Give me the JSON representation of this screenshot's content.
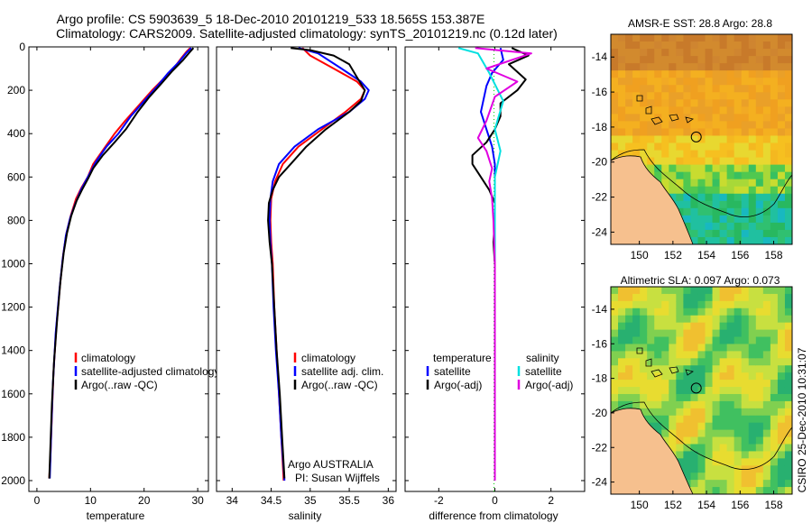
{
  "figure": {
    "title_line1": "Argo profile: CS 5903639_5 18-Dec-2010 20101219_533 18.565S 153.387E",
    "title_line2": "Climatology: CARS2009. Satellite-adjusted climatology: synTS_20101219.nc (0.12d later)",
    "footer_credit": "CSIRO 25-Dec-2010 10:31:07",
    "colors": {
      "climatology": "#ff0000",
      "satellite": "#0000ff",
      "argo": "#000000",
      "sat_salinity": "#00e0e0",
      "argo_salinity": "#e000e0"
    }
  },
  "chart_data": [
    {
      "type": "line",
      "name": "temperature",
      "xlabel": "temperature",
      "xlim": [
        -1.5,
        32
      ],
      "ylim": [
        2050,
        0
      ],
      "xticks": [
        0,
        10,
        20,
        30
      ],
      "yticks": [
        0,
        200,
        400,
        600,
        800,
        1000,
        1200,
        1400,
        1600,
        1800,
        2000
      ],
      "legend": [
        "climatology",
        "satellite-adjusted climatology",
        "Argo(..raw -QC)"
      ],
      "series": [
        {
          "name": "climatology",
          "color": "#ff0000",
          "points": [
            [
              28.6,
              5
            ],
            [
              28,
              20
            ],
            [
              27,
              50
            ],
            [
              25.5,
              100
            ],
            [
              23.5,
              150
            ],
            [
              21.5,
              200
            ],
            [
              19,
              270
            ],
            [
              16.5,
              340
            ],
            [
              14.5,
              400
            ],
            [
              12.5,
              470
            ],
            [
              10.5,
              540
            ],
            [
              9.5,
              600
            ],
            [
              8.3,
              650
            ],
            [
              7.3,
              700
            ],
            [
              6.3,
              780
            ],
            [
              5.5,
              860
            ],
            [
              4.9,
              960
            ],
            [
              4.3,
              1100
            ],
            [
              3.6,
              1300
            ],
            [
              3.1,
              1500
            ],
            [
              2.8,
              1700
            ],
            [
              2.5,
              1900
            ],
            [
              2.3,
              1990
            ]
          ]
        },
        {
          "name": "satellite",
          "color": "#0000ff",
          "points": [
            [
              28.8,
              5
            ],
            [
              27.8,
              30
            ],
            [
              26.5,
              70
            ],
            [
              24.5,
              120
            ],
            [
              22.5,
              180
            ],
            [
              20,
              250
            ],
            [
              17.5,
              320
            ],
            [
              15.2,
              400
            ],
            [
              13,
              460
            ],
            [
              11,
              530
            ],
            [
              9.5,
              600
            ],
            [
              8.2,
              660
            ],
            [
              7.2,
              720
            ],
            [
              6.2,
              790
            ],
            [
              5.4,
              870
            ],
            [
              4.8,
              980
            ],
            [
              4.2,
              1120
            ],
            [
              3.5,
              1320
            ],
            [
              3.0,
              1550
            ],
            [
              2.7,
              1760
            ],
            [
              2.4,
              1990
            ]
          ]
        },
        {
          "name": "argo",
          "color": "#000000",
          "points": [
            [
              29.2,
              5
            ],
            [
              28.5,
              25
            ],
            [
              27.3,
              60
            ],
            [
              25.3,
              110
            ],
            [
              23.2,
              170
            ],
            [
              21,
              230
            ],
            [
              18.8,
              300
            ],
            [
              16.6,
              380
            ],
            [
              14.5,
              440
            ],
            [
              12.3,
              500
            ],
            [
              10.5,
              560
            ],
            [
              9.5,
              610
            ],
            [
              8.4,
              660
            ],
            [
              7.4,
              710
            ],
            [
              6.4,
              780
            ],
            [
              5.6,
              860
            ],
            [
              5.0,
              950
            ],
            [
              4.4,
              1080
            ],
            [
              3.8,
              1250
            ],
            [
              3.2,
              1450
            ],
            [
              2.8,
              1650
            ],
            [
              2.5,
              1850
            ],
            [
              2.3,
              1990
            ]
          ]
        }
      ]
    },
    {
      "type": "line",
      "name": "salinity",
      "xlabel": "salinity",
      "xlim": [
        33.8,
        36.1
      ],
      "ylim": [
        2050,
        0
      ],
      "xticks": [
        34,
        34.5,
        35,
        35.5,
        36
      ],
      "legend": [
        "climatology",
        "satellite adj. clim.",
        "Argo(..raw -QC)"
      ],
      "series": [
        {
          "name": "climatology",
          "color": "#ff0000",
          "points": [
            [
              34.9,
              5
            ],
            [
              35.0,
              40
            ],
            [
              35.3,
              100
            ],
            [
              35.6,
              160
            ],
            [
              35.7,
              200
            ],
            [
              35.65,
              240
            ],
            [
              35.45,
              300
            ],
            [
              35.15,
              380
            ],
            [
              34.85,
              460
            ],
            [
              34.65,
              540
            ],
            [
              34.55,
              620
            ],
            [
              34.5,
              700
            ],
            [
              34.49,
              800
            ],
            [
              34.5,
              900
            ],
            [
              34.52,
              1000
            ],
            [
              34.54,
              1200
            ],
            [
              34.57,
              1400
            ],
            [
              34.6,
              1600
            ],
            [
              34.63,
              1800
            ],
            [
              34.66,
              2000
            ]
          ]
        },
        {
          "name": "satellite",
          "color": "#0000ff",
          "points": [
            [
              34.85,
              5
            ],
            [
              35.1,
              30
            ],
            [
              35.4,
              100
            ],
            [
              35.65,
              160
            ],
            [
              35.75,
              200
            ],
            [
              35.7,
              240
            ],
            [
              35.5,
              300
            ],
            [
              35.1,
              380
            ],
            [
              34.8,
              460
            ],
            [
              34.6,
              540
            ],
            [
              34.52,
              620
            ],
            [
              34.49,
              700
            ],
            [
              34.48,
              800
            ],
            [
              34.49,
              900
            ],
            [
              34.51,
              1000
            ],
            [
              34.53,
              1200
            ],
            [
              34.56,
              1400
            ],
            [
              34.6,
              1600
            ],
            [
              34.63,
              1800
            ],
            [
              34.67,
              2000
            ]
          ]
        },
        {
          "name": "argo",
          "color": "#000000",
          "points": [
            [
              34.75,
              5
            ],
            [
              35.0,
              15
            ],
            [
              35.3,
              40
            ],
            [
              35.5,
              80
            ],
            [
              35.6,
              140
            ],
            [
              35.7,
              200
            ],
            [
              35.65,
              250
            ],
            [
              35.5,
              300
            ],
            [
              35.2,
              380
            ],
            [
              34.95,
              460
            ],
            [
              34.75,
              540
            ],
            [
              34.6,
              600
            ],
            [
              34.52,
              660
            ],
            [
              34.47,
              720
            ],
            [
              34.46,
              800
            ],
            [
              34.48,
              900
            ],
            [
              34.51,
              1000
            ],
            [
              34.54,
              1200
            ],
            [
              34.57,
              1400
            ],
            [
              34.61,
              1600
            ],
            [
              34.64,
              1800
            ],
            [
              34.67,
              1990
            ]
          ]
        }
      ]
    },
    {
      "type": "line",
      "name": "difference",
      "xlabel": "difference from climatology",
      "xlim": [
        -3.2,
        3.2
      ],
      "ylim": [
        2050,
        0
      ],
      "xticks": [
        -2,
        0,
        2
      ],
      "legend_headers": [
        "temperature",
        "salinity"
      ],
      "legend_temperature": [
        "satellite",
        "Argo(-adj)"
      ],
      "legend_salinity": [
        "satellite",
        "Argo(-adj)"
      ],
      "series": [
        {
          "name": "temperature satellite",
          "color": "#0000ff",
          "points": [
            [
              0.2,
              5
            ],
            [
              0.3,
              60
            ],
            [
              -0.1,
              120
            ],
            [
              -0.3,
              180
            ],
            [
              -0.4,
              240
            ],
            [
              -0.5,
              300
            ],
            [
              -0.3,
              380
            ],
            [
              -0.1,
              460
            ],
            [
              0,
              540
            ],
            [
              0,
              650
            ],
            [
              0,
              800
            ],
            [
              0,
              1000
            ],
            [
              0,
              1400
            ],
            [
              0,
              2000
            ]
          ]
        },
        {
          "name": "temperature argo",
          "color": "#000000",
          "points": [
            [
              0.6,
              5
            ],
            [
              1.2,
              40
            ],
            [
              0.5,
              80
            ],
            [
              1.1,
              150
            ],
            [
              0.8,
              200
            ],
            [
              0.2,
              260
            ],
            [
              0.2,
              320
            ],
            [
              0.0,
              380
            ],
            [
              -0.3,
              440
            ],
            [
              -0.8,
              500
            ],
            [
              -0.8,
              540
            ],
            [
              -0.5,
              600
            ],
            [
              -0.2,
              660
            ],
            [
              0,
              720
            ],
            [
              0,
              800
            ],
            [
              -0.05,
              900
            ],
            [
              0,
              1000
            ],
            [
              0,
              1400
            ],
            [
              0,
              2000
            ]
          ]
        },
        {
          "name": "salinity satellite",
          "color": "#00e0e0",
          "points": [
            [
              -1.3,
              5
            ],
            [
              -0.6,
              30
            ],
            [
              -0.2,
              120
            ],
            [
              0.3,
              250
            ],
            [
              0.0,
              380
            ],
            [
              0.2,
              480
            ],
            [
              0.0,
              600
            ],
            [
              0,
              800
            ],
            [
              0,
              1400
            ],
            [
              0,
              2000
            ]
          ]
        },
        {
          "name": "salinity argo",
          "color": "#e000e0",
          "points": [
            [
              -0.7,
              5
            ],
            [
              1.3,
              30
            ],
            [
              -0.3,
              100
            ],
            [
              0.8,
              160
            ],
            [
              0.0,
              230
            ],
            [
              -0.3,
              340
            ],
            [
              -0.6,
              420
            ],
            [
              -0.3,
              480
            ],
            [
              -0.1,
              560
            ],
            [
              -0.2,
              620
            ],
            [
              -0.1,
              700
            ],
            [
              -0.05,
              800
            ],
            [
              0,
              1000
            ],
            [
              0,
              1400
            ],
            [
              0,
              2000
            ]
          ]
        }
      ]
    },
    {
      "type": "heatmap",
      "name": "sst-map",
      "title": "AMSR-E SST: 28.8 Argo: 28.8",
      "xticks": [
        150,
        152,
        154,
        156,
        158
      ],
      "yticks": [
        -14,
        -16,
        -18,
        -20,
        -22,
        -24
      ],
      "xlim": [
        148.3,
        159.1
      ],
      "ylim": [
        -24.7,
        -12.7
      ],
      "profile_location": [
        153.387,
        -18.565
      ]
    },
    {
      "type": "heatmap",
      "name": "sla-map",
      "title": "Altimetric SLA: 0.097 Argo: 0.073",
      "xticks": [
        150,
        152,
        154,
        156,
        158
      ],
      "yticks": [
        -14,
        -16,
        -18,
        -20,
        -22,
        -24
      ],
      "xlim": [
        148.3,
        159.1
      ],
      "ylim": [
        -24.7,
        -12.7
      ],
      "profile_location": [
        153.387,
        -18.565
      ]
    }
  ]
}
